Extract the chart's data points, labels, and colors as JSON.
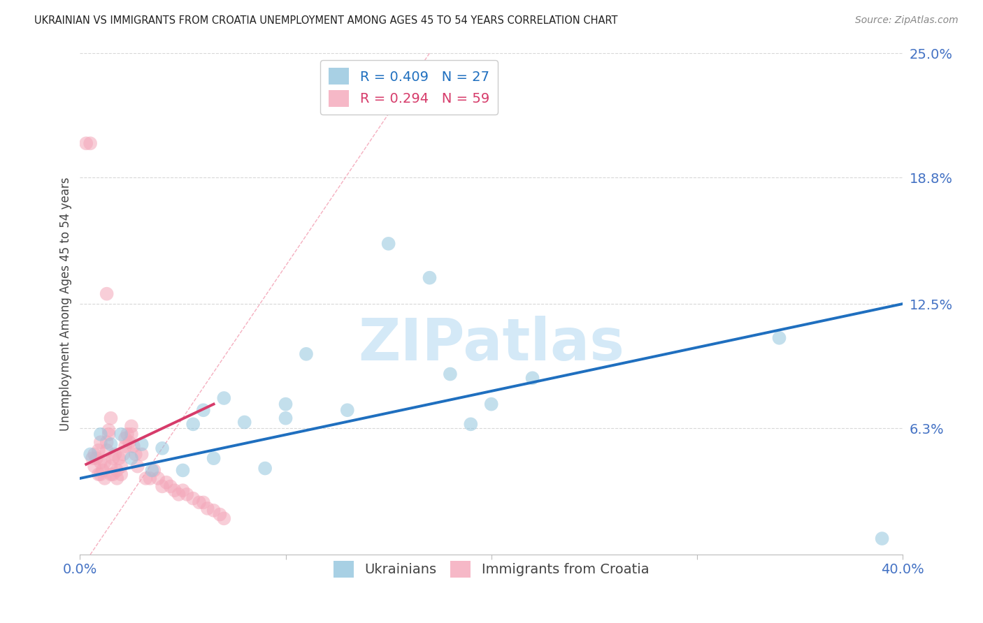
{
  "title": "UKRAINIAN VS IMMIGRANTS FROM CROATIA UNEMPLOYMENT AMONG AGES 45 TO 54 YEARS CORRELATION CHART",
  "source": "Source: ZipAtlas.com",
  "ylabel": "Unemployment Among Ages 45 to 54 years",
  "xlim": [
    0.0,
    0.4
  ],
  "ylim": [
    0.0,
    0.25
  ],
  "xticks": [
    0.0,
    0.1,
    0.2,
    0.3,
    0.4
  ],
  "xtick_labels": [
    "0.0%",
    "",
    "",
    "",
    "40.0%"
  ],
  "ytick_positions": [
    0.0,
    0.063,
    0.125,
    0.188,
    0.25
  ],
  "ytick_labels": [
    "",
    "6.3%",
    "12.5%",
    "18.8%",
    "25.0%"
  ],
  "blue_color": "#92c5de",
  "pink_color": "#f4a7b9",
  "blue_line_color": "#1f6fbf",
  "pink_line_color": "#d63b6a",
  "diag_line_color": "#f4a7b9",
  "blue_R": 0.409,
  "blue_N": 27,
  "pink_R": 0.294,
  "pink_N": 59,
  "watermark": "ZIPatlas",
  "watermark_color": "#d4e9f7",
  "title_color": "#222222",
  "axis_label_color": "#444444",
  "tick_color": "#4472C4",
  "grid_color": "#d8d8d8",
  "blue_scatter_x": [
    0.005,
    0.01,
    0.015,
    0.02,
    0.025,
    0.03,
    0.035,
    0.04,
    0.05,
    0.055,
    0.06,
    0.065,
    0.07,
    0.08,
    0.09,
    0.1,
    0.1,
    0.11,
    0.13,
    0.15,
    0.17,
    0.18,
    0.19,
    0.2,
    0.22,
    0.34,
    0.39
  ],
  "blue_scatter_y": [
    0.05,
    0.06,
    0.055,
    0.06,
    0.048,
    0.055,
    0.042,
    0.053,
    0.042,
    0.065,
    0.072,
    0.048,
    0.078,
    0.066,
    0.043,
    0.068,
    0.075,
    0.1,
    0.072,
    0.155,
    0.138,
    0.09,
    0.065,
    0.075,
    0.088,
    0.108,
    0.008
  ],
  "pink_scatter_x": [
    0.003,
    0.005,
    0.006,
    0.007,
    0.007,
    0.008,
    0.009,
    0.009,
    0.01,
    0.01,
    0.01,
    0.011,
    0.012,
    0.012,
    0.013,
    0.013,
    0.014,
    0.014,
    0.015,
    0.015,
    0.015,
    0.016,
    0.016,
    0.017,
    0.018,
    0.018,
    0.019,
    0.02,
    0.02,
    0.021,
    0.022,
    0.022,
    0.023,
    0.024,
    0.025,
    0.025,
    0.026,
    0.027,
    0.028,
    0.03,
    0.032,
    0.034,
    0.036,
    0.038,
    0.04,
    0.042,
    0.044,
    0.046,
    0.048,
    0.05,
    0.052,
    0.055,
    0.058,
    0.06,
    0.062,
    0.065,
    0.068,
    0.07,
    0.013
  ],
  "pink_scatter_y": [
    0.205,
    0.205,
    0.048,
    0.05,
    0.044,
    0.048,
    0.04,
    0.052,
    0.04,
    0.046,
    0.056,
    0.042,
    0.038,
    0.046,
    0.052,
    0.056,
    0.06,
    0.062,
    0.04,
    0.044,
    0.068,
    0.04,
    0.048,
    0.05,
    0.038,
    0.042,
    0.048,
    0.04,
    0.044,
    0.05,
    0.054,
    0.058,
    0.06,
    0.056,
    0.06,
    0.064,
    0.054,
    0.05,
    0.044,
    0.05,
    0.038,
    0.038,
    0.042,
    0.038,
    0.034,
    0.036,
    0.034,
    0.032,
    0.03,
    0.032,
    0.03,
    0.028,
    0.026,
    0.026,
    0.023,
    0.022,
    0.02,
    0.018,
    0.13
  ],
  "blue_trend_x": [
    0.0,
    0.4
  ],
  "blue_trend_y": [
    0.038,
    0.125
  ],
  "pink_trend_x": [
    0.003,
    0.065
  ],
  "pink_trend_y": [
    0.045,
    0.075
  ]
}
